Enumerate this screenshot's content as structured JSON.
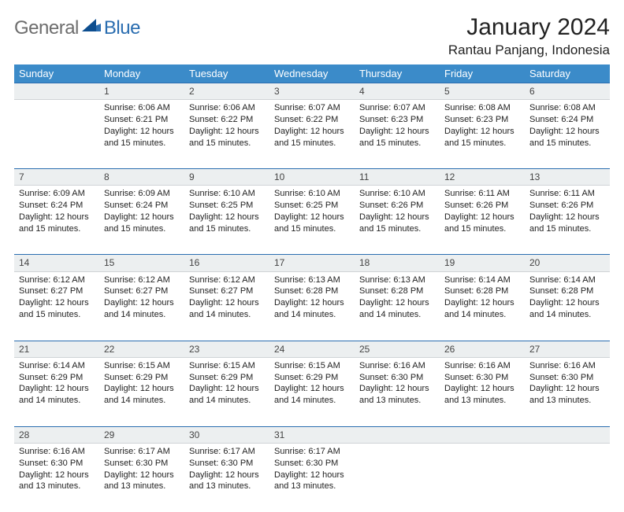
{
  "logo": {
    "text1": "General",
    "text2": "Blue"
  },
  "title": "January 2024",
  "location": "Rantau Panjang, Indonesia",
  "colors": {
    "header_bg": "#3b8bc9",
    "header_text": "#ffffff",
    "rule": "#2a6db0",
    "daynum_bg": "#eceff0",
    "logo_gray": "#6d6d6d",
    "logo_blue": "#2a6db0"
  },
  "layout": {
    "cols": 7,
    "start_weekday": 1
  },
  "weekdays": [
    "Sunday",
    "Monday",
    "Tuesday",
    "Wednesday",
    "Thursday",
    "Friday",
    "Saturday"
  ],
  "days": [
    {
      "n": 1,
      "sunrise": "6:06 AM",
      "sunset": "6:21 PM",
      "daylight": "12 hours and 15 minutes."
    },
    {
      "n": 2,
      "sunrise": "6:06 AM",
      "sunset": "6:22 PM",
      "daylight": "12 hours and 15 minutes."
    },
    {
      "n": 3,
      "sunrise": "6:07 AM",
      "sunset": "6:22 PM",
      "daylight": "12 hours and 15 minutes."
    },
    {
      "n": 4,
      "sunrise": "6:07 AM",
      "sunset": "6:23 PM",
      "daylight": "12 hours and 15 minutes."
    },
    {
      "n": 5,
      "sunrise": "6:08 AM",
      "sunset": "6:23 PM",
      "daylight": "12 hours and 15 minutes."
    },
    {
      "n": 6,
      "sunrise": "6:08 AM",
      "sunset": "6:24 PM",
      "daylight": "12 hours and 15 minutes."
    },
    {
      "n": 7,
      "sunrise": "6:09 AM",
      "sunset": "6:24 PM",
      "daylight": "12 hours and 15 minutes."
    },
    {
      "n": 8,
      "sunrise": "6:09 AM",
      "sunset": "6:24 PM",
      "daylight": "12 hours and 15 minutes."
    },
    {
      "n": 9,
      "sunrise": "6:10 AM",
      "sunset": "6:25 PM",
      "daylight": "12 hours and 15 minutes."
    },
    {
      "n": 10,
      "sunrise": "6:10 AM",
      "sunset": "6:25 PM",
      "daylight": "12 hours and 15 minutes."
    },
    {
      "n": 11,
      "sunrise": "6:10 AM",
      "sunset": "6:26 PM",
      "daylight": "12 hours and 15 minutes."
    },
    {
      "n": 12,
      "sunrise": "6:11 AM",
      "sunset": "6:26 PM",
      "daylight": "12 hours and 15 minutes."
    },
    {
      "n": 13,
      "sunrise": "6:11 AM",
      "sunset": "6:26 PM",
      "daylight": "12 hours and 15 minutes."
    },
    {
      "n": 14,
      "sunrise": "6:12 AM",
      "sunset": "6:27 PM",
      "daylight": "12 hours and 15 minutes."
    },
    {
      "n": 15,
      "sunrise": "6:12 AM",
      "sunset": "6:27 PM",
      "daylight": "12 hours and 14 minutes."
    },
    {
      "n": 16,
      "sunrise": "6:12 AM",
      "sunset": "6:27 PM",
      "daylight": "12 hours and 14 minutes."
    },
    {
      "n": 17,
      "sunrise": "6:13 AM",
      "sunset": "6:28 PM",
      "daylight": "12 hours and 14 minutes."
    },
    {
      "n": 18,
      "sunrise": "6:13 AM",
      "sunset": "6:28 PM",
      "daylight": "12 hours and 14 minutes."
    },
    {
      "n": 19,
      "sunrise": "6:14 AM",
      "sunset": "6:28 PM",
      "daylight": "12 hours and 14 minutes."
    },
    {
      "n": 20,
      "sunrise": "6:14 AM",
      "sunset": "6:28 PM",
      "daylight": "12 hours and 14 minutes."
    },
    {
      "n": 21,
      "sunrise": "6:14 AM",
      "sunset": "6:29 PM",
      "daylight": "12 hours and 14 minutes."
    },
    {
      "n": 22,
      "sunrise": "6:15 AM",
      "sunset": "6:29 PM",
      "daylight": "12 hours and 14 minutes."
    },
    {
      "n": 23,
      "sunrise": "6:15 AM",
      "sunset": "6:29 PM",
      "daylight": "12 hours and 14 minutes."
    },
    {
      "n": 24,
      "sunrise": "6:15 AM",
      "sunset": "6:29 PM",
      "daylight": "12 hours and 14 minutes."
    },
    {
      "n": 25,
      "sunrise": "6:16 AM",
      "sunset": "6:30 PM",
      "daylight": "12 hours and 13 minutes."
    },
    {
      "n": 26,
      "sunrise": "6:16 AM",
      "sunset": "6:30 PM",
      "daylight": "12 hours and 13 minutes."
    },
    {
      "n": 27,
      "sunrise": "6:16 AM",
      "sunset": "6:30 PM",
      "daylight": "12 hours and 13 minutes."
    },
    {
      "n": 28,
      "sunrise": "6:16 AM",
      "sunset": "6:30 PM",
      "daylight": "12 hours and 13 minutes."
    },
    {
      "n": 29,
      "sunrise": "6:17 AM",
      "sunset": "6:30 PM",
      "daylight": "12 hours and 13 minutes."
    },
    {
      "n": 30,
      "sunrise": "6:17 AM",
      "sunset": "6:30 PM",
      "daylight": "12 hours and 13 minutes."
    },
    {
      "n": 31,
      "sunrise": "6:17 AM",
      "sunset": "6:30 PM",
      "daylight": "12 hours and 13 minutes."
    }
  ],
  "labels": {
    "sunrise": "Sunrise:",
    "sunset": "Sunset:",
    "daylight": "Daylight:"
  }
}
